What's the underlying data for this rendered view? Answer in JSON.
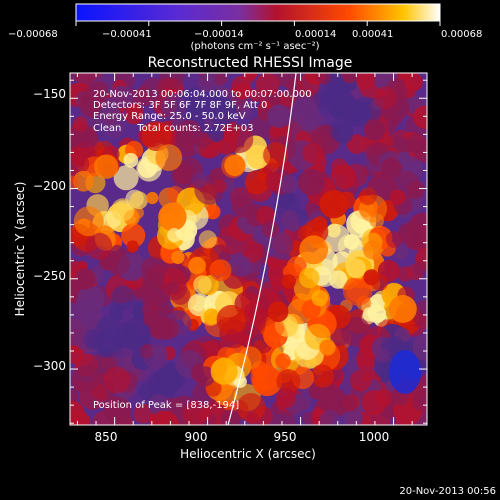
{
  "colorbar": {
    "tick_labels": [
      "−0.00068",
      "−0.00041",
      "−0.00014",
      "0.00014",
      "0.00041",
      "0.00068"
    ],
    "units_label": "(photons cm⁻² s⁻¹ asec⁻²)",
    "colors": [
      "#0a14ff",
      "#5a2ad2",
      "#7a2fa0",
      "#b3122e",
      "#ff4a00",
      "#ffc400",
      "#ffffff"
    ]
  },
  "image": {
    "title": "Reconstructed RHESSI Image",
    "annotations": [
      "20-Nov-2013 00:06:04.000 to 00:07:00.000",
      "Detectors: 3F 5F 6F 7F 8F 9F, Att 0",
      "Energy Range: 25.0 - 50.0 keV",
      "Clean     Total counts: 2.72E+03"
    ],
    "peak_label": "Position of Peak = [838,-194]",
    "xlabel": "Heliocentric X (arcsec)",
    "ylabel": "Heliocentric Y (arcsec)",
    "xticks": [
      "850",
      "900",
      "950",
      "1000"
    ],
    "yticks": [
      "−150",
      "−200",
      "−250",
      "−300"
    ],
    "xrange": [
      826,
      1018
    ],
    "yrange": [
      -331,
      -136
    ]
  },
  "footer": {
    "timestamp": "20-Nov-2013 00:56"
  }
}
